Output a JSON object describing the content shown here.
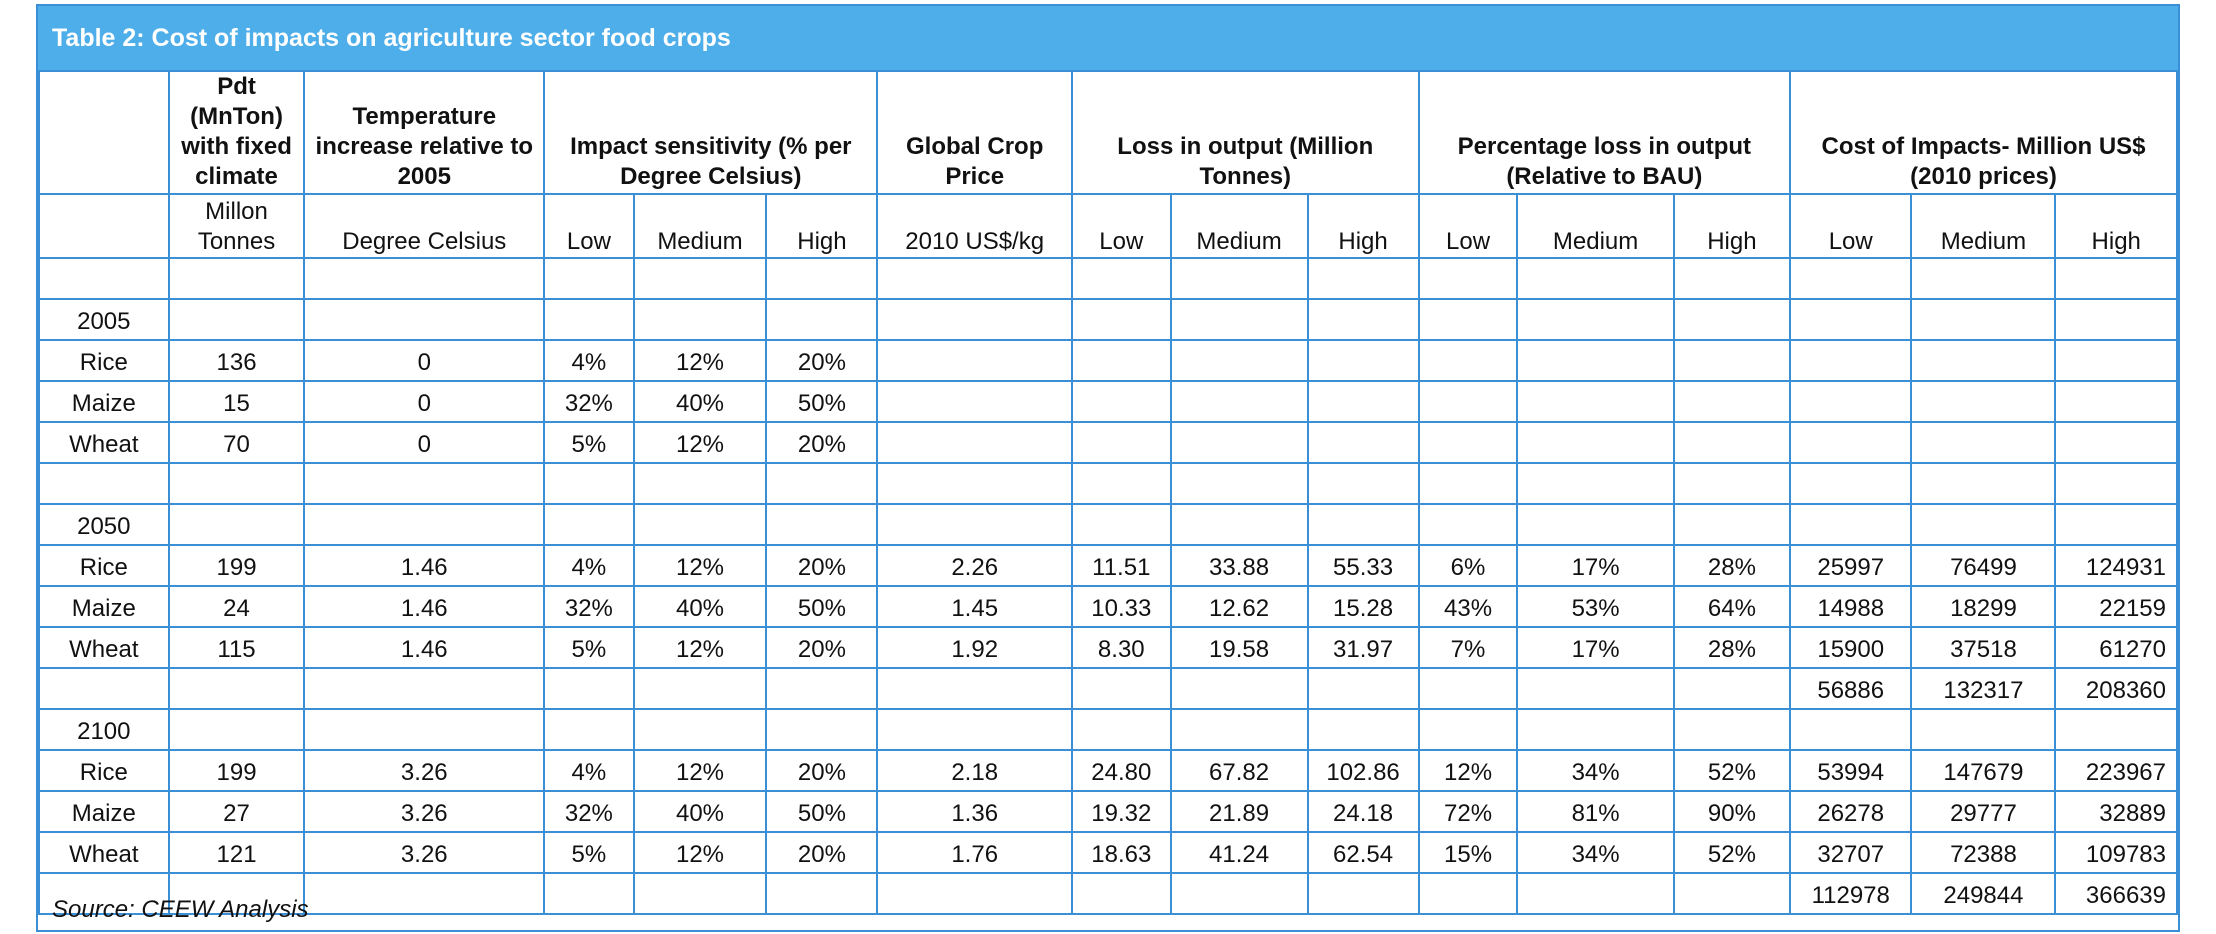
{
  "table": {
    "caption": "Table 2: Cost of impacts on agriculture sector food crops",
    "headers": {
      "production": "Pdt (MnTon) with fixed climate",
      "temperature": "Temperature increase relative to 2005",
      "sensitivity": "Impact sensitivity (% per Degree Celsius)",
      "price": "Global Crop Price",
      "loss": "Loss in output (Million Tonnes)",
      "pct_loss": "Percentage loss in output (Relative to BAU)",
      "cost": "Cost of Impacts- Million US$ (2010 prices)"
    },
    "units": {
      "production": "Millon Tonnes",
      "temperature": "Degree Celsius",
      "sens_low": "Low",
      "sens_medium": "Medium",
      "sens_high": "High",
      "price": "2010 US$/kg",
      "loss_low": "Low",
      "loss_medium": "Medium",
      "loss_high": "High",
      "pct_low": "Low",
      "pct_medium": "Medium",
      "pct_high": "High",
      "cost_low": "Low",
      "cost_medium": "Medium",
      "cost_high": "High"
    },
    "years": [
      "2005",
      "2050",
      "2100"
    ],
    "rows_2005": [
      {
        "crop": "Rice",
        "pdt": "136",
        "temp": "0",
        "s_low": "4%",
        "s_med": "12%",
        "s_high": "20%"
      },
      {
        "crop": "Maize",
        "pdt": "15",
        "temp": "0",
        "s_low": "32%",
        "s_med": "40%",
        "s_high": "50%"
      },
      {
        "crop": "Wheat",
        "pdt": "70",
        "temp": "0",
        "s_low": "5%",
        "s_med": "12%",
        "s_high": "20%"
      }
    ],
    "rows_2050": [
      {
        "crop": "Rice",
        "pdt": "199",
        "temp": "1.46",
        "s_low": "4%",
        "s_med": "12%",
        "s_high": "20%",
        "price": "2.26",
        "l_low": "11.51",
        "l_med": "33.88",
        "l_high": "55.33",
        "p_low": "6%",
        "p_med": "17%",
        "p_high": "28%",
        "c_low": "25997",
        "c_med": "76499",
        "c_high": "124931"
      },
      {
        "crop": "Maize",
        "pdt": "24",
        "temp": "1.46",
        "s_low": "32%",
        "s_med": "40%",
        "s_high": "50%",
        "price": "1.45",
        "l_low": "10.33",
        "l_med": "12.62",
        "l_high": "15.28",
        "p_low": "43%",
        "p_med": "53%",
        "p_high": "64%",
        "c_low": "14988",
        "c_med": "18299",
        "c_high": "22159"
      },
      {
        "crop": "Wheat",
        "pdt": "115",
        "temp": "1.46",
        "s_low": "5%",
        "s_med": "12%",
        "s_high": "20%",
        "price": "1.92",
        "l_low": "8.30",
        "l_med": "19.58",
        "l_high": "31.97",
        "p_low": "7%",
        "p_med": "17%",
        "p_high": "28%",
        "c_low": "15900",
        "c_med": "37518",
        "c_high": "61270"
      }
    ],
    "total_2050": {
      "c_low": "56886",
      "c_med": "132317",
      "c_high": "208360"
    },
    "rows_2100": [
      {
        "crop": "Rice",
        "pdt": "199",
        "temp": "3.26",
        "s_low": "4%",
        "s_med": "12%",
        "s_high": "20%",
        "price": "2.18",
        "l_low": "24.80",
        "l_med": "67.82",
        "l_high": "102.86",
        "p_low": "12%",
        "p_med": "34%",
        "p_high": "52%",
        "c_low": "53994",
        "c_med": "147679",
        "c_high": "223967"
      },
      {
        "crop": "Maize",
        "pdt": "27",
        "temp": "3.26",
        "s_low": "32%",
        "s_med": "40%",
        "s_high": "50%",
        "price": "1.36",
        "l_low": "19.32",
        "l_med": "21.89",
        "l_high": "24.18",
        "p_low": "72%",
        "p_med": "81%",
        "p_high": "90%",
        "c_low": "26278",
        "c_med": "29777",
        "c_high": "32889"
      },
      {
        "crop": "Wheat",
        "pdt": "121",
        "temp": "3.26",
        "s_low": "5%",
        "s_med": "12%",
        "s_high": "20%",
        "price": "1.76",
        "l_low": "18.63",
        "l_med": "41.24",
        "l_high": "62.54",
        "p_low": "15%",
        "p_med": "34%",
        "p_high": "52%",
        "c_low": "32707",
        "c_med": "72388",
        "c_high": "109783"
      }
    ],
    "total_2100": {
      "c_low": "112978",
      "c_med": "249844",
      "c_high": "366639"
    },
    "source": "Source: CEEW Analysis"
  }
}
